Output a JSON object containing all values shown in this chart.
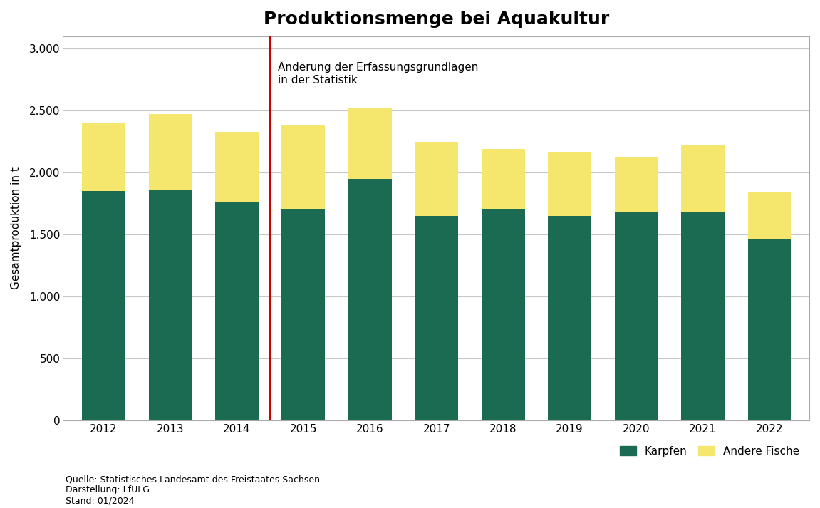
{
  "title": "Produktionsmenge bei Aquakultur",
  "ylabel": "Gesamtproduktion in t",
  "years": [
    2012,
    2013,
    2014,
    2015,
    2016,
    2017,
    2018,
    2019,
    2020,
    2021,
    2022
  ],
  "karpfen": [
    1850,
    1860,
    1760,
    1700,
    1950,
    1650,
    1700,
    1650,
    1680,
    1680,
    1460
  ],
  "andere_fische": [
    550,
    610,
    570,
    680,
    570,
    590,
    490,
    510,
    440,
    540,
    380
  ],
  "karpfen_color": "#1a6b52",
  "andere_fische_color": "#f5e66e",
  "vline_color": "#cc0000",
  "annotation_text": "Änderung der Erfassungsgrundlagen\nin der Statistik",
  "ylim": [
    0,
    3100
  ],
  "yticks": [
    0,
    500,
    1000,
    1500,
    2000,
    2500,
    3000
  ],
  "ytick_labels": [
    "0",
    "500",
    "1.000",
    "1.500",
    "2.000",
    "2.500",
    "3.000"
  ],
  "legend_karpfen": "Karpfen",
  "legend_andere": "Andere Fische",
  "source_text": "Quelle: Statistisches Landesamt des Freistaates Sachsen\nDarstellung: LfULG\nStand: 01/2024",
  "bar_width": 0.65,
  "background_color": "#ffffff",
  "grid_color": "#c8c8c8",
  "title_fontsize": 18,
  "axis_label_fontsize": 11,
  "tick_fontsize": 11,
  "annotation_fontsize": 11,
  "legend_fontsize": 11,
  "source_fontsize": 9,
  "border_color": "#aaaaaa"
}
